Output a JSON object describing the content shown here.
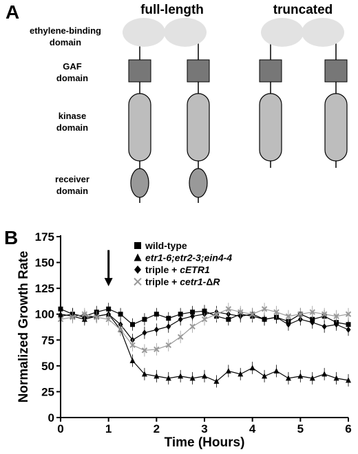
{
  "panel_a": {
    "letter": "A",
    "columns": [
      "full-length",
      "truncated"
    ],
    "row_labels": {
      "ethylene": [
        "ethylene-binding",
        "domain"
      ],
      "gaf": [
        "GAF",
        "domain"
      ],
      "kinase": [
        "kinase",
        "domain"
      ],
      "receiver": [
        "receiver",
        "domain"
      ]
    },
    "colors": {
      "ethylene_domain": "#e2e2e2",
      "gaf_domain": "#777777",
      "kinase_domain": "#bdbdbd",
      "receiver_domain": "#999999"
    }
  },
  "panel_b": {
    "letter": "B",
    "legend": [
      {
        "marker": "square",
        "label_parts": [
          {
            "text": "wild-type",
            "italic": false
          }
        ]
      },
      {
        "marker": "triangle",
        "label_parts": [
          {
            "text": "etr1-6;etr2-3;ein4-4",
            "italic": true
          }
        ]
      },
      {
        "marker": "diamond",
        "label_parts": [
          {
            "text": "triple + ",
            "italic": false
          },
          {
            "text": "cETR1",
            "italic": true
          }
        ]
      },
      {
        "marker": "cross",
        "label_parts": [
          {
            "text": "triple + ",
            "italic": false
          },
          {
            "text": "cetr1-",
            "italic": true
          },
          {
            "text": "Δ",
            "italic": false
          },
          {
            "text": "R",
            "italic": true
          }
        ]
      }
    ]
  },
  "chart_data": {
    "type": "line",
    "xlabel": "Time (Hours)",
    "ylabel": "Normalized Growth Rate",
    "xlim": [
      0,
      6
    ],
    "ylim": [
      0,
      175
    ],
    "xticks": [
      0,
      1,
      2,
      3,
      4,
      5,
      6
    ],
    "yticks": [
      0,
      25,
      50,
      75,
      100,
      125,
      150,
      175
    ],
    "grid": false,
    "legend_position": "top-right",
    "annotation": {
      "type": "arrow",
      "x": 1.0,
      "from_y": 162,
      "to_y": 127
    },
    "x": [
      0,
      0.25,
      0.5,
      0.75,
      1.0,
      1.25,
      1.5,
      1.75,
      2.0,
      2.25,
      2.5,
      2.75,
      3.0,
      3.25,
      3.5,
      3.75,
      4.0,
      4.25,
      4.5,
      4.75,
      5.0,
      5.25,
      5.5,
      5.75,
      6.0
    ],
    "series": [
      {
        "name": "wild-type",
        "marker": "square",
        "color": "#000000",
        "values": [
          105,
          100,
          98,
          102,
          105,
          100,
          90,
          95,
          100,
          96,
          100,
          102,
          103,
          98,
          95,
          100,
          98,
          95,
          97,
          93,
          100,
          95,
          98,
          92,
          90
        ]
      },
      {
        "name": "etr1-6;etr2-3;ein4-4",
        "marker": "triangle",
        "color": "#000000",
        "values": [
          100,
          98,
          95,
          98,
          100,
          85,
          55,
          42,
          40,
          38,
          40,
          38,
          40,
          35,
          45,
          42,
          48,
          40,
          45,
          38,
          40,
          38,
          42,
          38,
          36
        ]
      },
      {
        "name": "triple + cETR1",
        "marker": "diamond",
        "color": "#000000",
        "values": [
          98,
          100,
          97,
          98,
          100,
          90,
          75,
          82,
          85,
          88,
          95,
          98,
          100,
          102,
          100,
          98,
          100,
          95,
          97,
          90,
          95,
          92,
          88,
          90,
          85
        ]
      },
      {
        "name": "triple + cetr1-ΔR",
        "marker": "cross",
        "color": "#999999",
        "values": [
          95,
          97,
          100,
          97,
          95,
          85,
          70,
          65,
          66,
          70,
          78,
          88,
          95,
          100,
          105,
          102,
          100,
          105,
          102,
          98,
          100,
          102,
          100,
          98,
          100
        ]
      }
    ]
  }
}
